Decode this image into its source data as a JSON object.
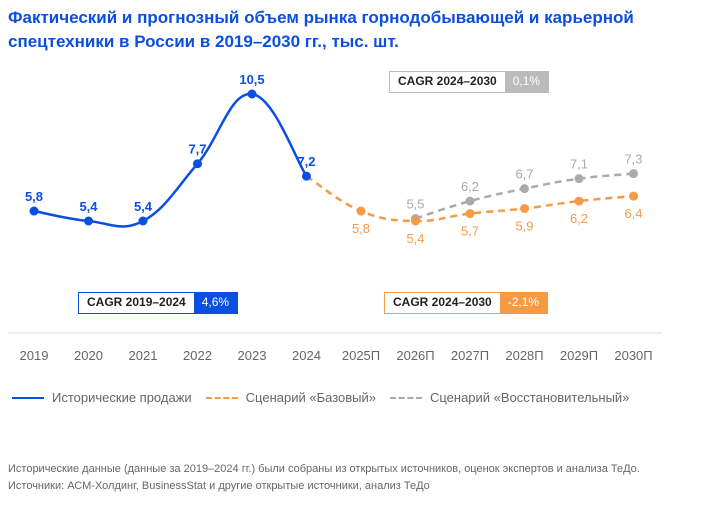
{
  "title": "Фактический и прогнозный объем рынка горнодобывающей и карьерной спецтехники в России в 2019–2030 гг., тыс. шт.",
  "colors": {
    "historical": "#0a4fe0",
    "base": "#f79a45",
    "recovery": "#aaaaaa",
    "axis": "#eeeeee",
    "tick": "#666666"
  },
  "cagr_boxes": [
    {
      "label": "CAGR 2019–2024",
      "value": "4,6%",
      "color": "#0a4fe0"
    },
    {
      "label": "CAGR 2024–2030",
      "value": "-2,1%",
      "color": "#f79a45"
    },
    {
      "label": "CAGR 2024–2030",
      "value": "0,1%",
      "color": "#bbbbbb"
    }
  ],
  "legend": [
    {
      "label": "Исторические продажи",
      "color": "#0a4fe0",
      "style": "solid"
    },
    {
      "label": "Сценарий «Базовый»",
      "color": "#f79a45",
      "style": "dashed"
    },
    {
      "label": "Сценарий «Восстановительный»",
      "color": "#aaaaaa",
      "style": "dashed"
    }
  ],
  "footer": [
    "Исторические данные (данные за 2019–2024 гг.) были собраны из открытых источников, оценок экспертов и анализа ТеДо.",
    "Источники: АСМ-Холдинг, BusinessStat и другие открытые источники, анализ ТеДо"
  ],
  "chart_data": {
    "type": "line",
    "title": "Фактический и прогнозный объем рынка горнодобывающей и карьерной спецтехники в России в 2019–2030 гг., тыс. шт.",
    "xlabel": "",
    "ylabel": "тыс. шт.",
    "grid": false,
    "legend_position": "bottom",
    "categories": [
      "2019",
      "2020",
      "2021",
      "2022",
      "2023",
      "2024",
      "2025П",
      "2026П",
      "2027П",
      "2028П",
      "2029П",
      "2030П"
    ],
    "series": [
      {
        "name": "Исторические продажи",
        "x": [
          "2019",
          "2020",
          "2021",
          "2022",
          "2023",
          "2024"
        ],
        "values": [
          5.8,
          5.4,
          5.4,
          7.7,
          10.5,
          7.2
        ],
        "labels": [
          "5,8",
          "5,4",
          "5,4",
          "7,7",
          "10,5",
          "7,2"
        ]
      },
      {
        "name": "Сценарий «Базовый»",
        "x": [
          "2024",
          "2025П",
          "2026П",
          "2027П",
          "2028П",
          "2029П",
          "2030П"
        ],
        "values": [
          7.2,
          5.8,
          5.4,
          5.7,
          5.9,
          6.2,
          6.4
        ],
        "labels": [
          "",
          "5,8",
          "5,4",
          "5,7",
          "5,9",
          "6,2",
          "6,4"
        ]
      },
      {
        "name": "Сценарий «Восстановительный»",
        "x": [
          "2026П",
          "2027П",
          "2028П",
          "2029П",
          "2030П"
        ],
        "values": [
          5.5,
          6.2,
          6.7,
          7.1,
          7.3
        ],
        "labels": [
          "5,5",
          "6,2",
          "6,7",
          "7,1",
          "7,3"
        ]
      }
    ]
  }
}
